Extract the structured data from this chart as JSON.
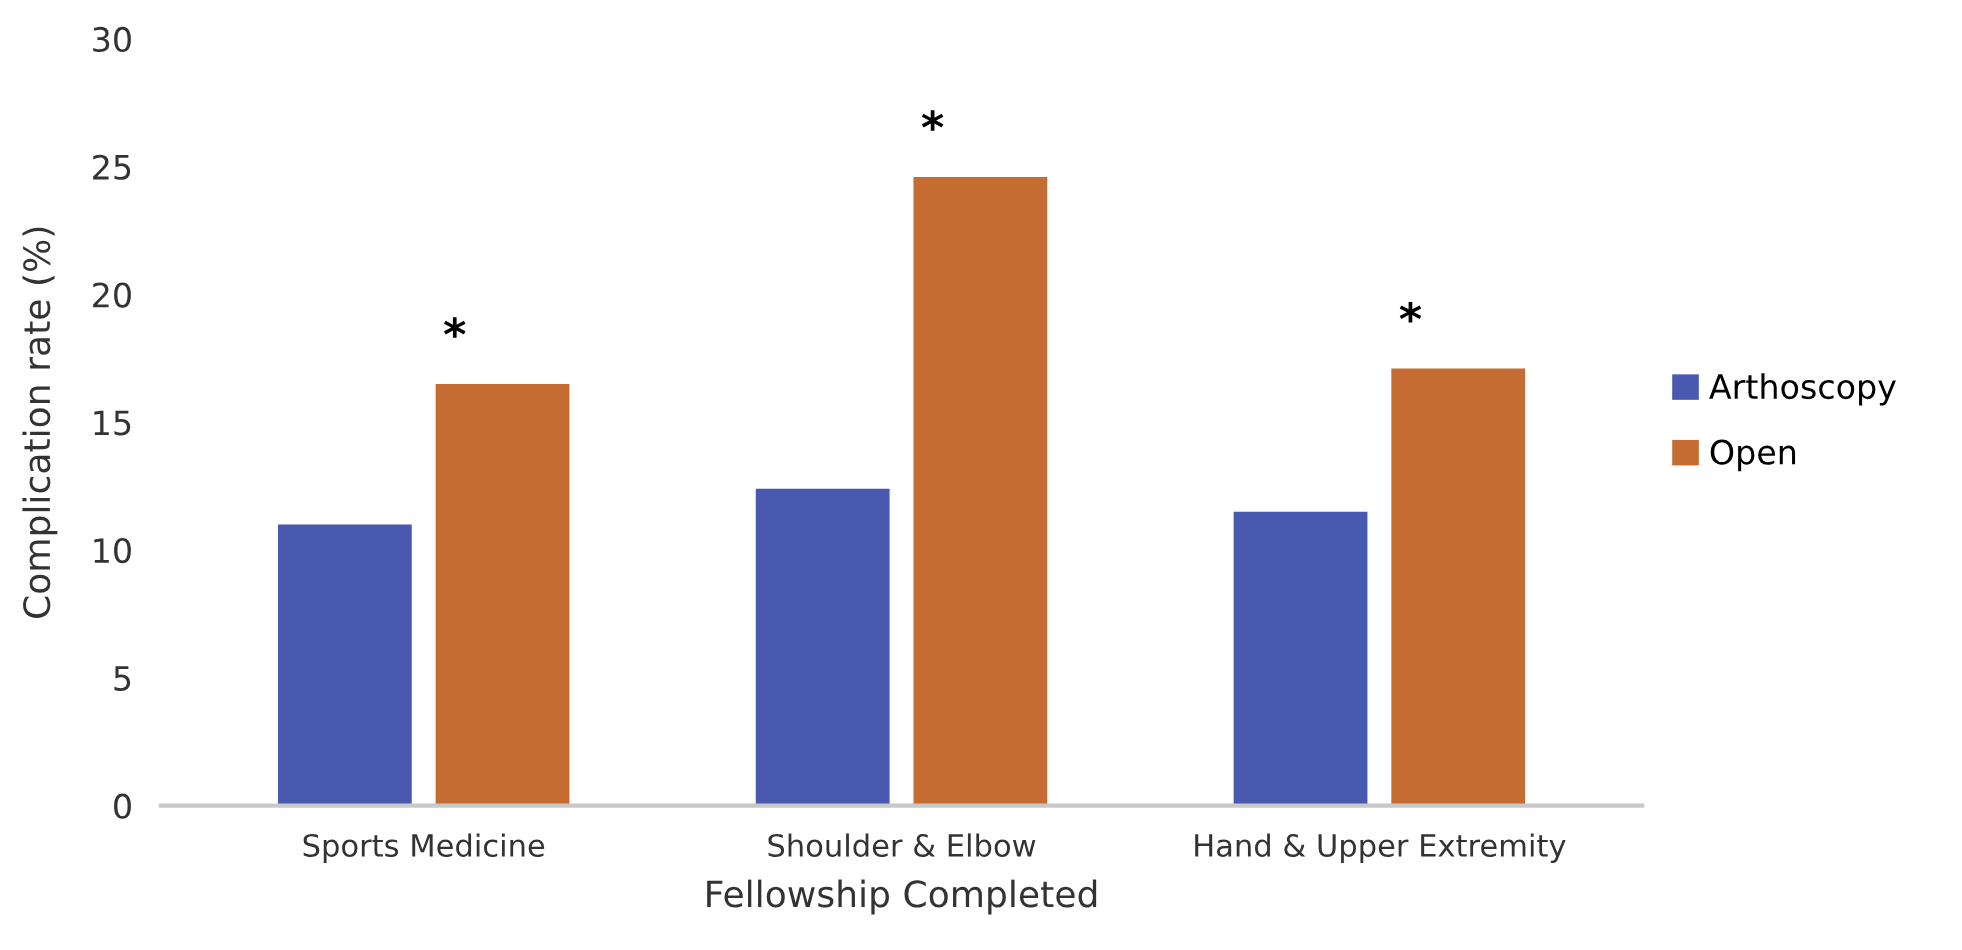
{
  "chart_data": {
    "type": "bar",
    "xlabel": "Fellowship Completed",
    "ylabel": "Complication rate (%)",
    "categories": [
      "Sports Medicine",
      "Shoulder & Elbow",
      "Hand & Upper Extremity"
    ],
    "series": [
      {
        "name": "Arthoscopy",
        "color": "#4a59b0",
        "values": [
          11.0,
          12.4,
          11.5
        ]
      },
      {
        "name": "Open",
        "color": "#c46c32",
        "values": [
          16.5,
          24.6,
          17.1
        ]
      }
    ],
    "ylim": [
      0,
      30
    ],
    "yticks": [
      0,
      5,
      10,
      15,
      20,
      25,
      30
    ],
    "grid": false,
    "legend": "right",
    "annotations": [
      "*",
      "*",
      "*"
    ]
  }
}
